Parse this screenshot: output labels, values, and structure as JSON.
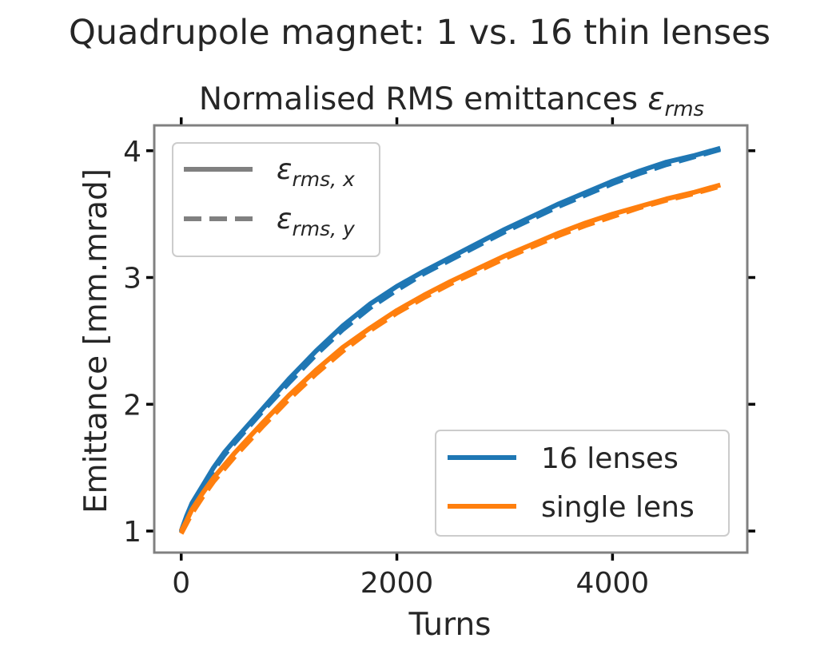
{
  "figure": {
    "suptitle": "Quadrupole magnet: 1 vs. 16 thin lenses"
  },
  "chart_data": {
    "type": "line",
    "title": "Normalised RMS emittances",
    "title_symbol": "ε",
    "title_symbol_sub": "rms",
    "xlabel": "Turns",
    "ylabel": "Emittance [mm.mrad]",
    "xlim": [
      -250,
      5250
    ],
    "ylim": [
      0.83,
      4.2
    ],
    "xticks": [
      0,
      2000,
      4000
    ],
    "xtick_labels": [
      "0",
      "2000",
      "4000"
    ],
    "yticks": [
      1,
      2,
      3,
      4
    ],
    "ytick_labels": [
      "1",
      "2",
      "3",
      "4"
    ],
    "grid": false,
    "colors": {
      "16_lenses": "#1f77b4",
      "single_lens": "#ff7f0e",
      "style_legend": "#808080"
    },
    "style_legend": {
      "placement": "top-left",
      "entries": [
        {
          "symbol": "ε",
          "sub": "rms, x",
          "linestyle": "solid"
        },
        {
          "symbol": "ε",
          "sub": "rms, y",
          "linestyle": "dashed"
        }
      ]
    },
    "series_legend": {
      "placement": "bottom-right",
      "entries": [
        {
          "label": "16 lenses",
          "color": "#1f77b4"
        },
        {
          "label": "single lens",
          "color": "#ff7f0e"
        }
      ]
    },
    "x": [
      0,
      50,
      100,
      200,
      300,
      400,
      500,
      750,
      1000,
      1250,
      1500,
      1750,
      2000,
      2250,
      2500,
      2750,
      3000,
      3250,
      3500,
      3750,
      4000,
      4250,
      4500,
      4750,
      5000
    ],
    "series": [
      {
        "name": "16 lenses",
        "plane": "x",
        "linestyle": "solid",
        "color": "#1f77b4",
        "values": [
          1.0,
          1.12,
          1.22,
          1.36,
          1.5,
          1.62,
          1.72,
          1.96,
          2.2,
          2.42,
          2.62,
          2.79,
          2.93,
          3.05,
          3.16,
          3.27,
          3.38,
          3.48,
          3.58,
          3.67,
          3.76,
          3.84,
          3.91,
          3.96,
          4.02
        ]
      },
      {
        "name": "16 lenses",
        "plane": "y",
        "linestyle": "dashed",
        "color": "#1f77b4",
        "values": [
          0.99,
          1.1,
          1.2,
          1.34,
          1.48,
          1.6,
          1.7,
          1.94,
          2.17,
          2.39,
          2.59,
          2.76,
          2.9,
          3.03,
          3.14,
          3.25,
          3.36,
          3.46,
          3.56,
          3.65,
          3.74,
          3.82,
          3.89,
          3.95,
          4.01
        ]
      },
      {
        "name": "single lens",
        "plane": "x",
        "linestyle": "solid",
        "color": "#ff7f0e",
        "values": [
          1.0,
          1.08,
          1.17,
          1.3,
          1.42,
          1.52,
          1.62,
          1.85,
          2.07,
          2.27,
          2.45,
          2.6,
          2.74,
          2.86,
          2.97,
          3.07,
          3.17,
          3.26,
          3.35,
          3.43,
          3.5,
          3.56,
          3.62,
          3.67,
          3.73
        ]
      },
      {
        "name": "single lens",
        "plane": "y",
        "linestyle": "dashed",
        "color": "#ff7f0e",
        "values": [
          0.98,
          1.06,
          1.14,
          1.27,
          1.39,
          1.49,
          1.59,
          1.82,
          2.04,
          2.24,
          2.42,
          2.58,
          2.72,
          2.84,
          2.95,
          3.05,
          3.15,
          3.24,
          3.33,
          3.41,
          3.48,
          3.55,
          3.61,
          3.66,
          3.72
        ]
      }
    ]
  }
}
